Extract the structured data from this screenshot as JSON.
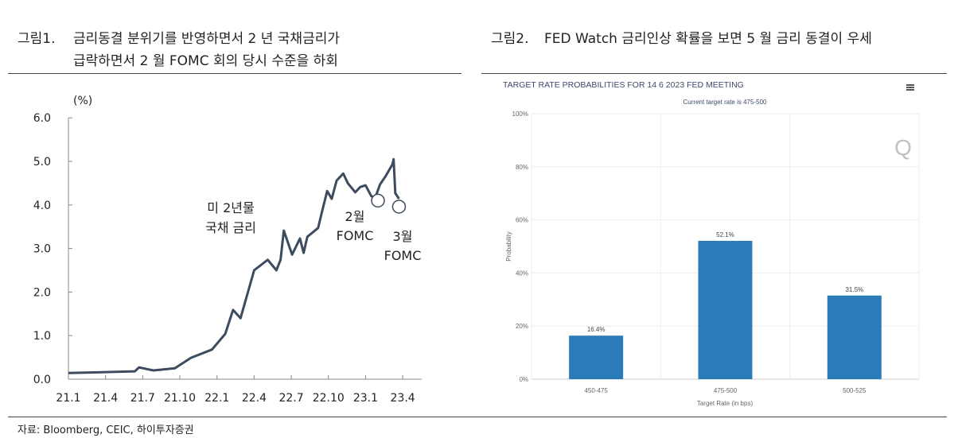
{
  "figure1": {
    "number": "그림1.",
    "title_line1": "금리동결 분위기를 반영하면서 2 년 국채금리가",
    "title_line2": "급락하면서 2 월 FOMC 회의 당시 수준을 하회",
    "unit": "(%)"
  },
  "figure2": {
    "number": "그림2.",
    "title": "FED Watch 금리인상 확률을 보면 5 월 금리 동결이 우세",
    "menu_icon": "hamburger-menu-icon",
    "watermark": "Q"
  },
  "source": "자료: Bloomberg, CEIC, 하이투자증권",
  "chart_data": [
    {
      "type": "line",
      "title": "",
      "xlabel": "",
      "ylabel": "(%)",
      "ylim": [
        0,
        6
      ],
      "yticks": [
        "0.0",
        "1.0",
        "2.0",
        "3.0",
        "4.0",
        "5.0",
        "6.0"
      ],
      "xticks": [
        "21.1",
        "21.4",
        "21.7",
        "21.10",
        "22.1",
        "22.4",
        "22.7",
        "22.10",
        "23.1",
        "23.4"
      ],
      "grid": false,
      "line_color": "#3d4b5e",
      "series": [
        {
          "name": "미 2년물 국채 금리",
          "x": [
            "2021-01-01",
            "2021-06-12",
            "2021-06-22",
            "2021-07-27",
            "2021-09-19",
            "2021-10-28",
            "2021-12-19",
            "2022-01-21",
            "2022-02-10",
            "2022-02-28",
            "2022-03-25",
            "2022-04-01",
            "2022-05-04",
            "2022-05-25",
            "2022-06-05",
            "2022-06-13",
            "2022-07-03",
            "2022-07-22",
            "2022-08-01",
            "2022-08-10",
            "2022-09-06",
            "2022-09-15",
            "2022-09-28",
            "2022-10-09",
            "2022-10-21",
            "2022-11-07",
            "2022-11-18",
            "2022-12-06",
            "2022-12-18",
            "2023-01-01",
            "2023-01-15",
            "2023-01-25",
            "2023-02-06",
            "2023-02-19",
            "2023-03-06",
            "2023-03-09",
            "2023-03-13",
            "2023-03-22"
          ],
          "y": [
            0.14,
            0.18,
            0.27,
            0.2,
            0.25,
            0.49,
            0.68,
            1.04,
            1.59,
            1.4,
            2.3,
            2.5,
            2.74,
            2.5,
            2.74,
            3.41,
            2.86,
            3.23,
            2.9,
            3.27,
            3.47,
            3.83,
            4.32,
            4.14,
            4.56,
            4.72,
            4.5,
            4.29,
            4.41,
            4.45,
            4.2,
            4.18,
            4.47,
            4.65,
            4.93,
            5.05,
            4.27,
            4.14
          ]
        }
      ],
      "annotations": [
        {
          "text_line1": "미 2년물",
          "text_line2": "국채 금리"
        },
        {
          "text_line1": "2월",
          "text_line2": "FOMC",
          "marker_x": "2023-02-01",
          "marker_y": 4.1
        },
        {
          "text_line1": "3월",
          "text_line2": "FOMC",
          "marker_x": "2023-03-22",
          "marker_y": 3.96
        }
      ]
    },
    {
      "type": "bar",
      "title": "TARGET RATE PROBABILITIES FOR 14 6 2023 FED MEETING",
      "subtitle": "Current target rate is 475-500",
      "xlabel": "Target Rate (in bps)",
      "ylabel": "Probability",
      "ylim": [
        0,
        100
      ],
      "yticks": [
        "0%",
        "20%",
        "40%",
        "60%",
        "80%",
        "100%"
      ],
      "categories": [
        "450-475",
        "475-500",
        "500-525"
      ],
      "values": [
        16.4,
        52.1,
        31.5
      ],
      "data_labels": [
        "16.4%",
        "52.1%",
        "31.5%"
      ],
      "grid": true,
      "bar_color": "#2b7bb9"
    }
  ]
}
